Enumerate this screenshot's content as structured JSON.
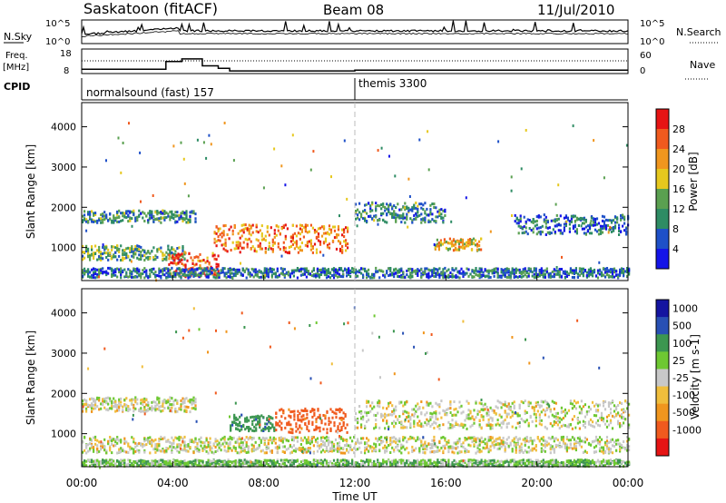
{
  "header": {
    "station": "Saskatoon (fitACF)",
    "beam": "Beam 08",
    "date": "11/Jul/2010"
  },
  "noise_panel": {
    "left_label": "N.Sky",
    "right_label": "N.Search",
    "left_ticks": [
      "10^5",
      "10^0"
    ],
    "right_ticks": [
      "10^5",
      "10^0"
    ]
  },
  "freq_panel": {
    "left_label_1": "Freq.",
    "left_label_2": "[MHz]",
    "right_label": "Nave",
    "left_ticks": [
      "18",
      "8"
    ],
    "right_ticks": [
      "60",
      "0"
    ]
  },
  "cpid": {
    "label": "CPID",
    "programs": [
      {
        "name": "normalsound (fast) 157",
        "start_ut": 0
      },
      {
        "name": "themis 3300",
        "start_ut": 12
      }
    ]
  },
  "time_axis": {
    "label": "Time UT",
    "ticks": [
      "00:00",
      "04:00",
      "08:00",
      "12:00",
      "16:00",
      "20:00",
      "00:00"
    ]
  },
  "colors": {
    "power_scale": [
      "#1414e8",
      "#1e50c8",
      "#2e8c64",
      "#5aa050",
      "#e6c81e",
      "#f0961e",
      "#f05a1e",
      "#e61414"
    ],
    "velocity_scale": [
      "#e61414",
      "#f05a1e",
      "#f0961e",
      "#f0be3c",
      "#c8c8c8",
      "#6ec832",
      "#3c9650",
      "#2850b4",
      "#1414a0"
    ],
    "missing": "#c8c8c8"
  },
  "chart_data": [
    {
      "type": "heatmap",
      "panel": "power",
      "ylabel": "Slant Range [km]",
      "xlabel": "Time UT",
      "xlim": [
        0,
        24
      ],
      "ylim": [
        180,
        4600
      ],
      "yticks": [
        "4000",
        "3000",
        "2000",
        "1000"
      ],
      "colorbar": {
        "label": "Power [dB]",
        "ticks": [
          "28",
          "24",
          "20",
          "16",
          "12",
          "8",
          "4"
        ],
        "range": [
          0,
          32
        ]
      },
      "echo_bands": [
        {
          "t0": 0,
          "t1": 5,
          "r_center": 1800,
          "r_halfwidth": 150,
          "level": 10
        },
        {
          "t0": 0,
          "t1": 4.5,
          "r_center": 900,
          "r_halfwidth": 180,
          "level": 12
        },
        {
          "t0": 3.8,
          "t1": 6,
          "r_center": 600,
          "r_halfwidth": 300,
          "level": 26
        },
        {
          "t0": 5.8,
          "t1": 11.7,
          "r_center": 1250,
          "r_halfwidth": 350,
          "level": 24
        },
        {
          "t0": 12,
          "t1": 16,
          "r_center": 1900,
          "r_halfwidth": 250,
          "level": 10
        },
        {
          "t0": 15.5,
          "t1": 17.5,
          "r_center": 1100,
          "r_halfwidth": 150,
          "level": 20
        },
        {
          "t0": 0,
          "t1": 24,
          "r_center": 400,
          "r_halfwidth": 120,
          "level": 8
        },
        {
          "t0": 19,
          "t1": 24,
          "r_center": 1600,
          "r_halfwidth": 250,
          "level": 8
        }
      ]
    },
    {
      "type": "heatmap",
      "panel": "velocity",
      "ylabel": "Slant Range [km]",
      "xlabel": "Time UT",
      "xlim": [
        0,
        24
      ],
      "ylim": [
        180,
        4600
      ],
      "yticks": [
        "4000",
        "3000",
        "2000",
        "1000"
      ],
      "colorbar": {
        "label": "Velocity [m s-1]",
        "ticks": [
          "1000",
          "500",
          "100",
          "25",
          "-25",
          "-100",
          "-500",
          "-1000"
        ]
      },
      "echo_bands": [
        {
          "t0": 0,
          "t1": 5,
          "r_center": 1750,
          "r_halfwidth": 180,
          "value": 0
        },
        {
          "t0": 0,
          "t1": 24,
          "r_center": 750,
          "r_halfwidth": 200,
          "value": 0
        },
        {
          "t0": 6.5,
          "t1": 8.5,
          "r_center": 1300,
          "r_halfwidth": 200,
          "value": 150
        },
        {
          "t0": 8.5,
          "t1": 11.7,
          "r_center": 1350,
          "r_halfwidth": 300,
          "value": -150
        },
        {
          "t0": 12,
          "t1": 24,
          "r_center": 1500,
          "r_halfwidth": 350,
          "value": 0
        },
        {
          "t0": 0,
          "t1": 24,
          "r_center": 300,
          "r_halfwidth": 80,
          "value": 60
        }
      ]
    }
  ]
}
